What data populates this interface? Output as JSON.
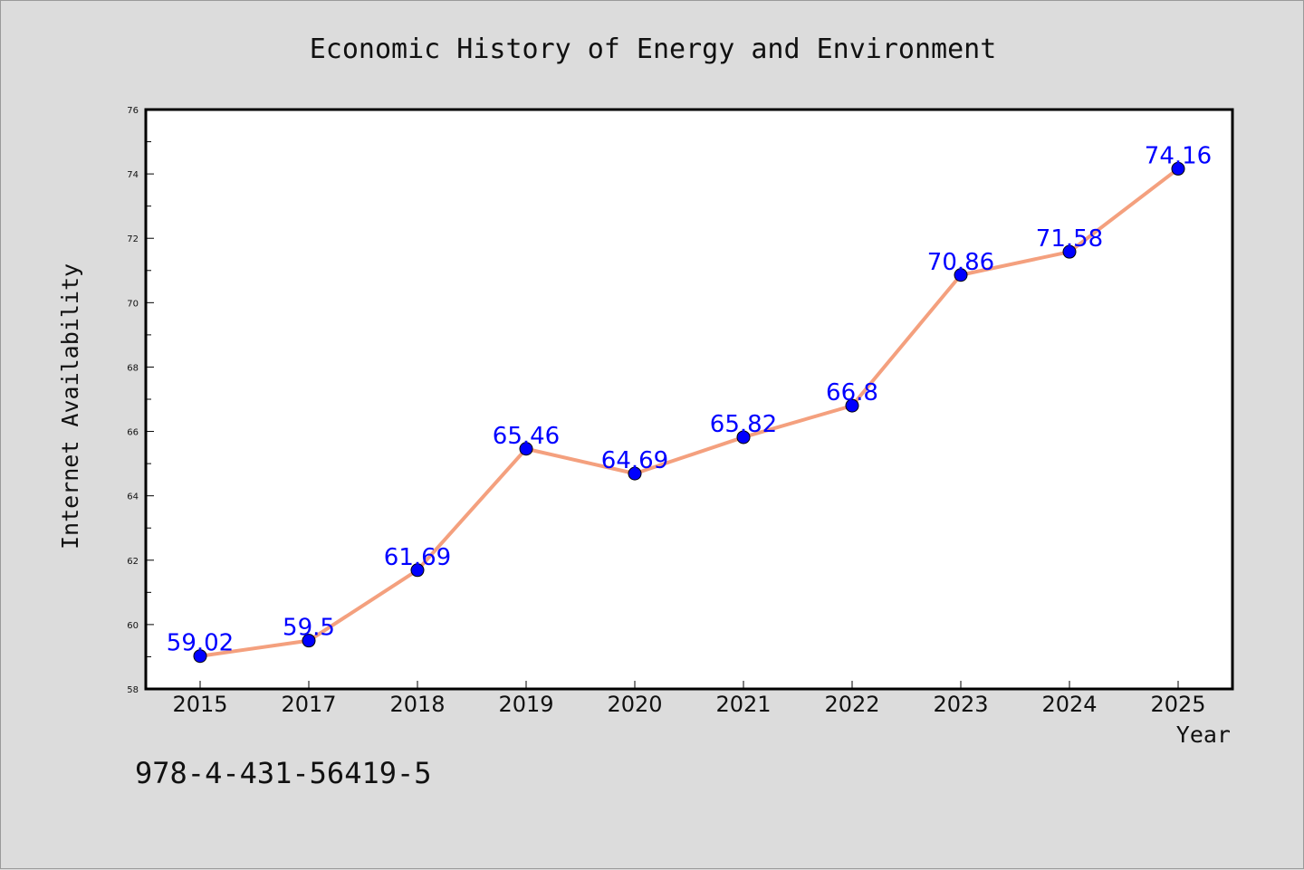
{
  "chart_data": {
    "type": "line",
    "title": "Economic History of Energy and Environment",
    "xlabel": "Year",
    "ylabel": "Internet Availability",
    "categories": [
      "2015",
      "2017",
      "2018",
      "2019",
      "2020",
      "2021",
      "2022",
      "2023",
      "2024",
      "2025"
    ],
    "series": [
      {
        "values": [
          59.02,
          59.5,
          61.69,
          65.46,
          64.69,
          65.82,
          66.8,
          70.86,
          71.58,
          74.16
        ],
        "labels": [
          "59.02",
          "59.5",
          "61.69",
          "65.46",
          "64.69",
          "65.82",
          "66.8",
          "70.86",
          "71.58",
          "74.16"
        ],
        "line_color": "#f4a07e",
        "marker_color": "#0000ff"
      }
    ],
    "ylim": [
      58,
      76
    ],
    "yticks": [
      "58",
      "60",
      "62",
      "64",
      "66",
      "68",
      "70",
      "72",
      "74",
      "76"
    ],
    "ytick_values": [
      58,
      60,
      62,
      64,
      66,
      68,
      70,
      72,
      74,
      76
    ],
    "grid": false,
    "legend": "none"
  },
  "annotation": {
    "isbn": "978-4-431-56419-5"
  },
  "colors": {
    "background": "#dcdcdc",
    "plot_area": "#ffffff",
    "label_text": "#0000ff"
  }
}
